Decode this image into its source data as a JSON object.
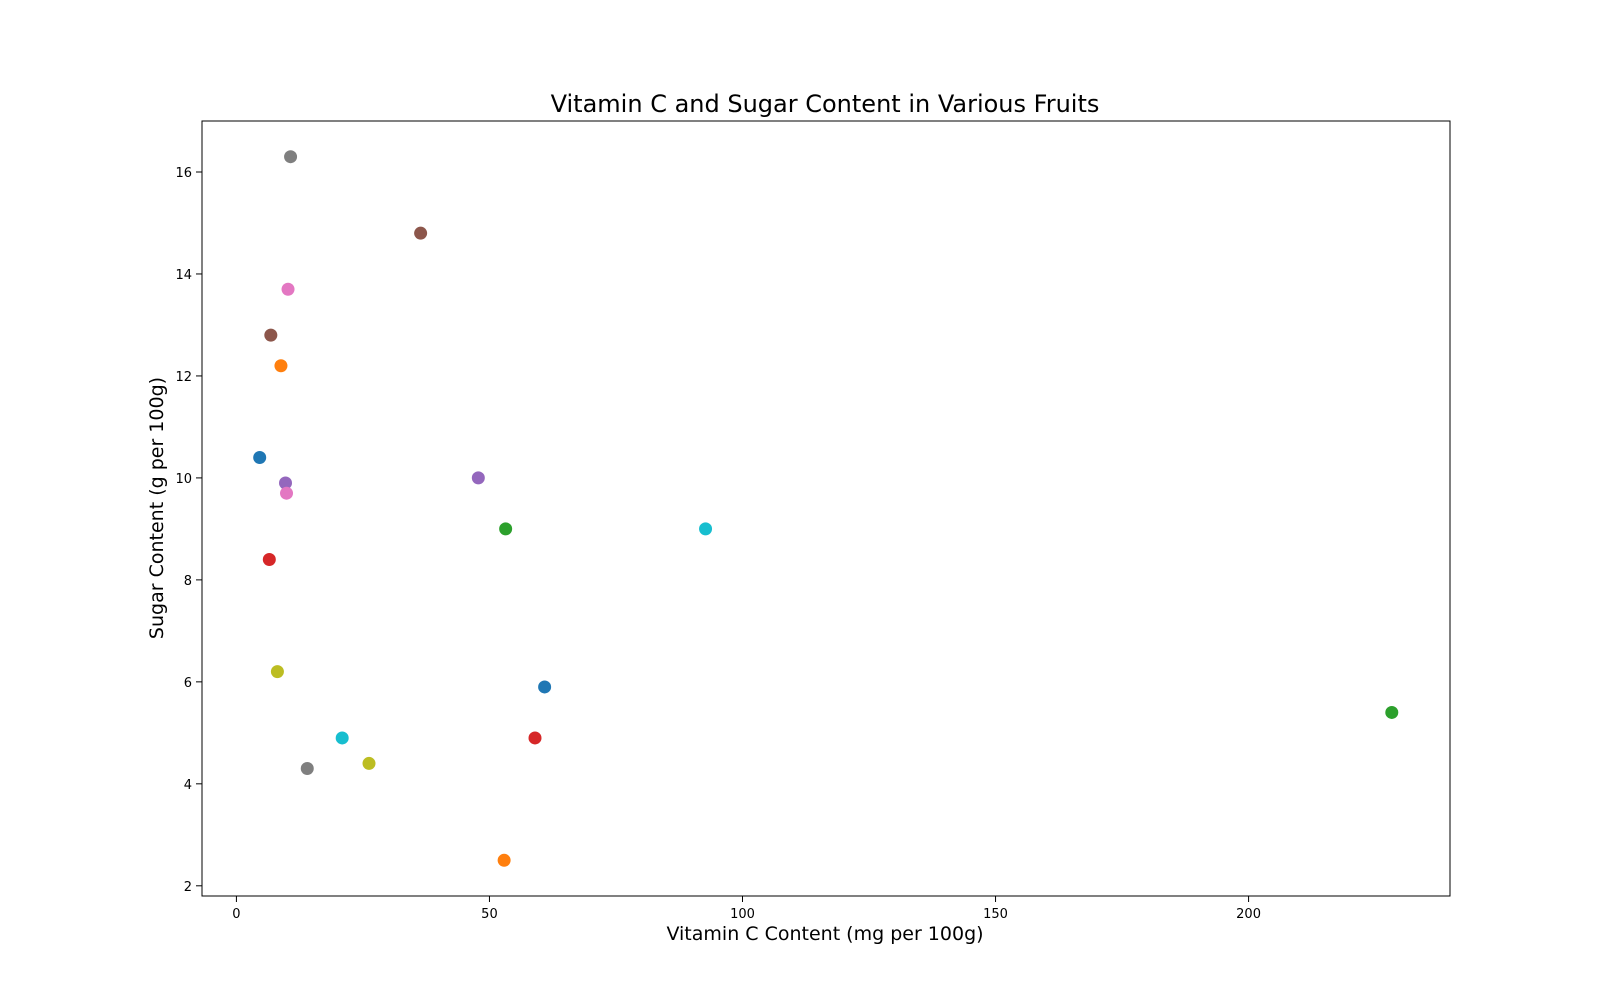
{
  "chart_data": {
    "type": "scatter",
    "title": "Vitamin C and Sugar Content in Various Fruits",
    "xlabel": "Vitamin C Content (mg per 100g)",
    "ylabel": "Sugar Content (g per 100g)",
    "xlim": [
      -6.8,
      239.8
    ],
    "ylim": [
      1.8,
      17.0
    ],
    "xticks": [
      0,
      50,
      100,
      150,
      200
    ],
    "yticks": [
      2,
      4,
      6,
      8,
      10,
      12,
      14,
      16
    ],
    "grid": false,
    "legend": "none",
    "points": [
      {
        "x": 4.6,
        "y": 10.4,
        "color": "#1f77b4"
      },
      {
        "x": 8.8,
        "y": 12.2,
        "color": "#ff7f0e"
      },
      {
        "x": 228.3,
        "y": 5.4,
        "color": "#2ca02c"
      },
      {
        "x": 6.5,
        "y": 8.4,
        "color": "#d62728"
      },
      {
        "x": 9.7,
        "y": 9.9,
        "color": "#9467bd"
      },
      {
        "x": 6.8,
        "y": 12.8,
        "color": "#8c564b"
      },
      {
        "x": 9.9,
        "y": 9.7,
        "color": "#e377c2"
      },
      {
        "x": 14.0,
        "y": 4.3,
        "color": "#7f7f7f"
      },
      {
        "x": 8.1,
        "y": 6.2,
        "color": "#bcbd22"
      },
      {
        "x": 20.9,
        "y": 4.9,
        "color": "#17becf"
      },
      {
        "x": 60.9,
        "y": 5.9,
        "color": "#1f77b4"
      },
      {
        "x": 52.9,
        "y": 2.5,
        "color": "#ff7f0e"
      },
      {
        "x": 53.2,
        "y": 9.0,
        "color": "#2ca02c"
      },
      {
        "x": 59.0,
        "y": 4.9,
        "color": "#d62728"
      },
      {
        "x": 47.8,
        "y": 10.0,
        "color": "#9467bd"
      },
      {
        "x": 36.4,
        "y": 14.8,
        "color": "#8c564b"
      },
      {
        "x": 10.2,
        "y": 13.7,
        "color": "#e377c2"
      },
      {
        "x": 10.7,
        "y": 16.3,
        "color": "#7f7f7f"
      },
      {
        "x": 26.2,
        "y": 4.4,
        "color": "#bcbd22"
      },
      {
        "x": 92.7,
        "y": 9.0,
        "color": "#17becf"
      }
    ]
  }
}
